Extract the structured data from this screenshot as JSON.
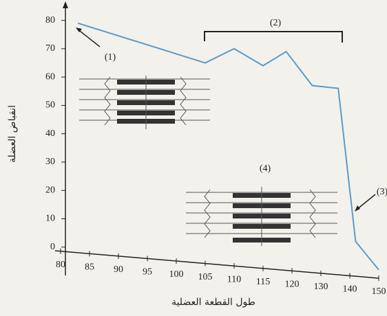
{
  "chart_data": {
    "type": "line",
    "xlabel": "طول القطعة العضلية",
    "ylabel": "انقباض العضلة",
    "x": [
      83,
      105,
      110,
      115,
      119,
      127,
      136,
      142,
      150
    ],
    "series": [
      {
        "color": "#5b9bc9",
        "values": [
          79,
          65,
          70,
          64,
          69,
          57,
          56,
          2,
          -8
        ]
      }
    ],
    "xlim": [
      80,
      150
    ],
    "xticks": [
      80,
      85,
      90,
      95,
      100,
      105,
      110,
      115,
      120,
      130,
      140,
      150
    ],
    "ylim": [
      -10,
      85
    ],
    "yticks": [
      0,
      10,
      20,
      30,
      40,
      50,
      60,
      70,
      80
    ],
    "annotations": [
      "(1)",
      "(2)",
      "(3)",
      "(4)"
    ]
  }
}
